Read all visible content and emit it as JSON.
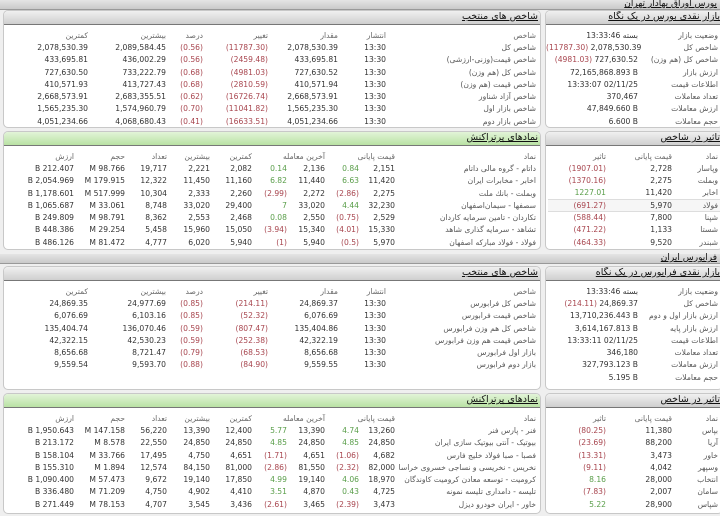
{
  "bourse": {
    "title": "بورس اوراق بهادار تهران",
    "overview": {
      "title": "بازار نقدی بورس در یک نگاه",
      "rows": [
        {
          "label": "وضعیت بازار",
          "value": "بسته 13:33:46"
        },
        {
          "label": "شاخص کل",
          "value": "2,078,530.39",
          "change": "(11787.30)"
        },
        {
          "label": "شاخص کل (هم وزن)",
          "value": "727,630.52",
          "change": "(4981.03)"
        },
        {
          "label": "ارزش بازار",
          "value": "72,165,868.893 B"
        },
        {
          "label": "اطلاعات قیمت",
          "value": "13:33:07 02/11/25"
        },
        {
          "label": "تعداد معاملات",
          "value": "370,467"
        },
        {
          "label": "ارزش معاملات",
          "value": "47,849.660 B"
        },
        {
          "label": "حجم معاملات",
          "value": "6.600 B"
        }
      ]
    },
    "indices": {
      "title": "شاخص های منتخب",
      "headers": [
        "شاخص",
        "انتشار",
        "مقدار",
        "تغییر",
        "درصد",
        "بیشترین",
        "کمترین"
      ],
      "rows": [
        [
          "شاخص کل",
          "13:30",
          "2,078,530.39",
          "(11787.30)",
          "(0.56)",
          "2,089,584.45",
          "2,078,530.39"
        ],
        [
          "شاخص قیمت(وزنی-ارزشی)",
          "13:30",
          "433,695.81",
          "(2459.48)",
          "(0.56)",
          "436,002.29",
          "433,695.81"
        ],
        [
          "شاخص کل (هم وزن)",
          "13:30",
          "727,630.52",
          "(4981.03)",
          "(0.68)",
          "733,222.79",
          "727,630.50"
        ],
        [
          "شاخص قیمت (هم وزن)",
          "13:30",
          "410,571.94",
          "(2810.59)",
          "(0.68)",
          "413,727.43",
          "410,571.93"
        ],
        [
          "شاخص آزاد شناور",
          "13:30",
          "2,668,573.91",
          "(16726.74)",
          "(0.62)",
          "2,683,355.51",
          "2,668,573.91"
        ],
        [
          "شاخص بازار اول",
          "13:30",
          "1,565,235.30",
          "(11041.82)",
          "(0.70)",
          "1,574,960.79",
          "1,565,235.30"
        ],
        [
          "شاخص بازار دوم",
          "13:30",
          "4,051,234.66",
          "(16633.51)",
          "(0.41)",
          "4,068,680.43",
          "4,051,234.66"
        ]
      ]
    },
    "trades": {
      "title": "نمادهای پرتراکنش",
      "headers": [
        "نماد",
        "قیمت پایانی",
        "آخرین معامله",
        "کمترین",
        "بیشترین",
        "تعداد",
        "حجم",
        "ارزش"
      ],
      "rows": [
        [
          "داتام - گروه مالی داتام",
          "2,151",
          "0.84",
          "2,136",
          "0.14",
          "2,082",
          "2,221",
          "19,717",
          "98.766 M",
          "212.407 B"
        ],
        [
          "اخابر - مخابرات ایران",
          "11,420",
          "6.63",
          "11,440",
          "6.82",
          "11,160",
          "11,450",
          "12,322",
          "179.915 M",
          "2,054.969 B"
        ],
        [
          "وبملت - بانك ملت",
          "2,275",
          "(2.86)",
          "2,272",
          "(2.99)",
          "2,260",
          "2,333",
          "10,304",
          "517.999 M",
          "1,178.601 B"
        ],
        [
          "سصفها - سیمان‌اصفهان",
          "32,230",
          "4.44",
          "33,020",
          "7",
          "29,400",
          "33,020",
          "8,748",
          "33.061 M",
          "1,065.687 B"
        ],
        [
          "تکاردان - تامین سرمایه کاردان",
          "2,529",
          "(0.75)",
          "2,550",
          "0.08",
          "2,468",
          "2,553",
          "8,362",
          "98.791 M",
          "249.809 B"
        ],
        [
          "تشاهد - سرمایه گذاری شاهد",
          "15,330",
          "(4.01)",
          "15,340",
          "(3.94)",
          "15,050",
          "15,960",
          "5,458",
          "29.254 M",
          "448.386 B"
        ],
        [
          "فولاد - فولاد مبارکه اصفهان",
          "5,970",
          "(0.5)",
          "5,940",
          "(1)",
          "5,940",
          "6,020",
          "4,777",
          "81.472 M",
          "486.126 B"
        ]
      ]
    },
    "impact": {
      "title": "تاثیر در شاخص",
      "headers": [
        "نماد",
        "قیمت پایانی",
        "تاثیر"
      ],
      "rows": [
        [
          "وپاسار",
          "2,728",
          "(1907.01)"
        ],
        [
          "وبملت",
          "2,275",
          "(1370.16)"
        ],
        [
          "اخابر",
          "11,420",
          "1227.01"
        ],
        [
          "فولاد",
          "5,970",
          "(691.27)"
        ],
        [
          "شپنا",
          "7,800",
          "(588.44)"
        ],
        [
          "شستا",
          "1,133",
          "(471.22)"
        ],
        [
          "شبندر",
          "9,520",
          "(464.33)"
        ]
      ]
    }
  },
  "farabourse": {
    "title": "فرابورس ایران",
    "overview": {
      "title": "بازار نقدی فرابورس در یک نگاه",
      "rows": [
        {
          "label": "وضعیت بازار",
          "value": "بسته 13:33:46"
        },
        {
          "label": "شاخص کل",
          "value": "24,869.37",
          "change": "(214.11)"
        },
        {
          "label": "ارزش بازار اول و دوم",
          "value": "13,710,236.443 B"
        },
        {
          "label": "ارزش بازار پایه",
          "value": "3,614,167.813 B"
        },
        {
          "label": "اطلاعات قیمت",
          "value": "13:33:11 02/11/25"
        },
        {
          "label": "تعداد معاملات",
          "value": "346,180"
        },
        {
          "label": "ارزش معاملات",
          "value": "327,793.123 B"
        },
        {
          "label": "حجم معاملات",
          "value": "5.195 B"
        }
      ]
    },
    "indices": {
      "title": "شاخص های منتخب",
      "headers": [
        "شاخص",
        "انتشار",
        "مقدار",
        "تغییر",
        "درصد",
        "بیشترین",
        "کمترین"
      ],
      "rows": [
        [
          "شاخص کل فرابورس",
          "13:30",
          "24,869.37",
          "(214.11)",
          "(0.85)",
          "24,977.69",
          "24,869.35"
        ],
        [
          "شاخص قیمت فرابورس",
          "13:30",
          "6,076.69",
          "(52.32)",
          "(0.85)",
          "6,103.16",
          "6,076.69"
        ],
        [
          "شاخص کل هم وزن فرابورس",
          "13:30",
          "135,404.86",
          "(807.47)",
          "(0.59)",
          "136,070.46",
          "135,404.74"
        ],
        [
          "شاخص قیمت هم وزن فرابورس",
          "13:30",
          "42,322.19",
          "(252.38)",
          "(0.59)",
          "42,530.23",
          "42,322.15"
        ],
        [
          "بازار اول فرابورس",
          "13:30",
          "8,656.68",
          "(68.53)",
          "(0.79)",
          "8,721.47",
          "8,656.68"
        ],
        [
          "بازار دوم فرابورس",
          "13:30",
          "9,559.55",
          "(84.90)",
          "(0.88)",
          "9,593.70",
          "9,559.54"
        ]
      ]
    },
    "trades": {
      "title": "نمادهای پرتراکنش",
      "headers": [
        "نماد",
        "قیمت پایانی",
        "آخرین معامله",
        "کمترین",
        "بیشترین",
        "تعداد",
        "حجم",
        "ارزش"
      ],
      "rows": [
        [
          "فنر - پارس فنر",
          "13,260",
          "4.74",
          "13,390",
          "5.77",
          "12,400",
          "13,390",
          "56,220",
          "147.158 M",
          "1,950.643 B"
        ],
        [
          "بیوتیک - آنتی بیوتیک سازی ایران",
          "24,850",
          "4.85",
          "24,850",
          "4.85",
          "24,850",
          "24,850",
          "22,550",
          "8.578 M",
          "213.172 B"
        ],
        [
          "فصبا - صبا فولاد خلیج فارس",
          "4,682",
          "(1.06)",
          "4,651",
          "(1.71)",
          "4,651",
          "4,750",
          "17,495",
          "33.766 M",
          "158.104 B"
        ],
        [
          "نخریس - نخریسی و نساجی خسروی خراسان",
          "82,000",
          "(2.32)",
          "81,550",
          "(2.86)",
          "81,000",
          "84,150",
          "12,574",
          "1.894 M",
          "155.310 B"
        ],
        [
          "کرومیت - توسعه معادن کرومیت کاوندگان",
          "18,970",
          "4.06",
          "19,140",
          "4.99",
          "17,850",
          "19,140",
          "9,672",
          "57.473 M",
          "1,090.400 B"
        ],
        [
          "تلیسه - دامداری تلیسه نمونه",
          "4,725",
          "0.43",
          "4,870",
          "3.51",
          "4,410",
          "4,902",
          "4,750",
          "71.209 M",
          "336.480 B"
        ],
        [
          "خاور - ایران خودرو دیزل",
          "3,473",
          "(2.39)",
          "3,465",
          "(2.61)",
          "3,436",
          "3,545",
          "4,707",
          "78.153 M",
          "271.449 B"
        ]
      ]
    },
    "impact": {
      "title": "تاثیر در شاخص",
      "headers": [
        "نماد",
        "قیمت پایانی",
        "تاثیر"
      ],
      "rows": [
        [
          "بپاس",
          "11,380",
          "(80.25)"
        ],
        [
          "آریا",
          "88,200",
          "(23.69)"
        ],
        [
          "خاور",
          "3,473",
          "(13.31)"
        ],
        [
          "وسپهر",
          "4,042",
          "(9.11)"
        ],
        [
          "انتخاب",
          "28,000",
          "8.16"
        ],
        [
          "سامان",
          "2,007",
          "(7.83)"
        ],
        [
          "شپاس",
          "28,900",
          "5.22"
        ]
      ]
    }
  },
  "colors": {
    "negative": "#a8464f",
    "positive": "#5a9e4a",
    "trade_header": "#b9e2a4",
    "panel_header": "#cfcfcf"
  }
}
